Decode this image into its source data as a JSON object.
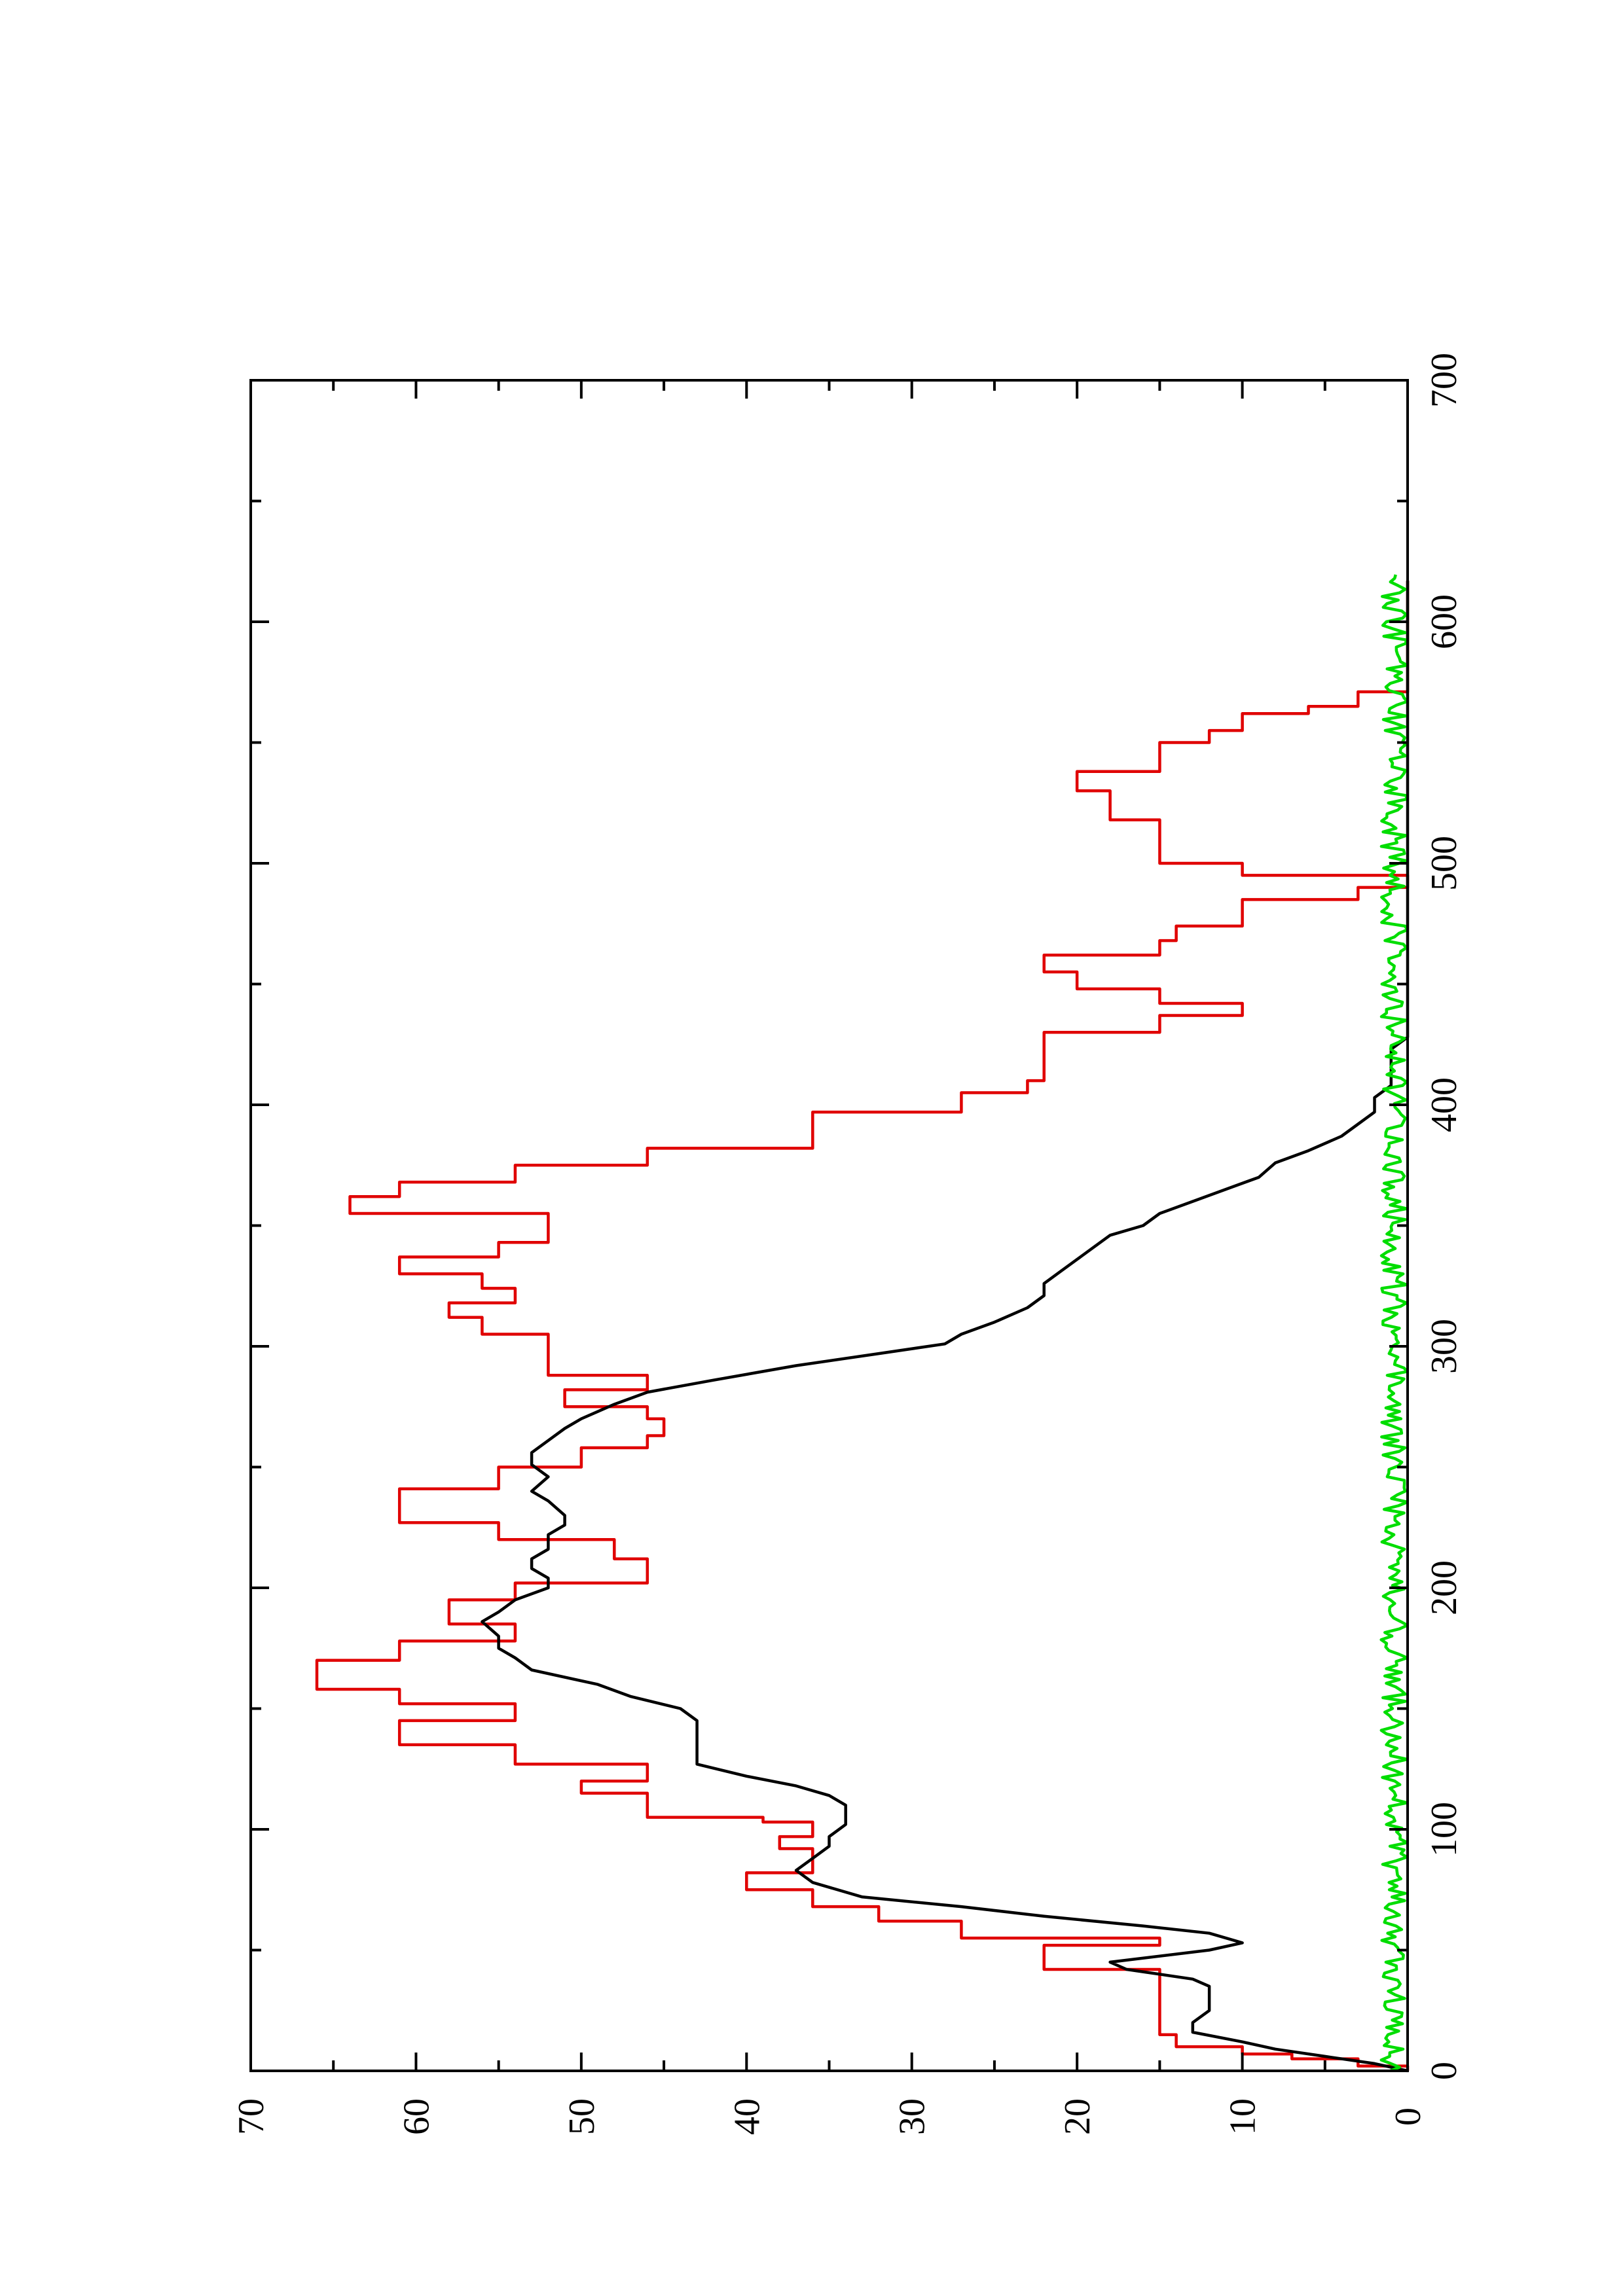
{
  "chart_data": {
    "type": "line",
    "orientation": "rotated-90-ccw",
    "xlim": [
      0,
      700
    ],
    "ylim": [
      0,
      70
    ],
    "x_major_ticks": [
      0,
      100,
      200,
      300,
      400,
      500,
      600,
      700
    ],
    "x_tick_labels": [
      "0",
      "100",
      "200",
      "300",
      "400",
      "500",
      "600",
      "700"
    ],
    "x_minor_ticks": [
      50,
      150,
      250,
      350,
      450,
      550,
      650
    ],
    "y_major_ticks": [
      0,
      10,
      20,
      30,
      40,
      50,
      60,
      70
    ],
    "y_tick_labels": [
      "0",
      "10",
      "20",
      "30",
      "40",
      "50",
      "60",
      "70"
    ],
    "y_minor_ticks": [
      5,
      15,
      25,
      35,
      45,
      55,
      65
    ],
    "grid": false,
    "series": [
      {
        "color": "#e00000",
        "step": true,
        "x": [
          0,
          2,
          5,
          7,
          10,
          15,
          20,
          25,
          30,
          37,
          42,
          52,
          55,
          62,
          68,
          75,
          82,
          88,
          92,
          97,
          103,
          105,
          110,
          115,
          120,
          127,
          135,
          145,
          152,
          158,
          163,
          170,
          178,
          185,
          195,
          202,
          212,
          220,
          227,
          233,
          241,
          250,
          258,
          263,
          270,
          275,
          282,
          288,
          294,
          300,
          305,
          312,
          318,
          324,
          330,
          337,
          343,
          350,
          355,
          362,
          368,
          375,
          382,
          393,
          397,
          405,
          410,
          415,
          423,
          430,
          437,
          442,
          448,
          455,
          462,
          468,
          474,
          480,
          485,
          490,
          495,
          500,
          507,
          512,
          518,
          525,
          530,
          535,
          538,
          545,
          550,
          555,
          562,
          565,
          571,
          580,
          588,
          595,
          602,
          608,
          612,
          617
        ],
        "y": [
          0,
          3,
          7,
          10,
          14,
          15,
          15,
          15,
          15,
          15,
          22,
          15,
          27,
          32,
          36,
          40,
          36,
          36,
          38,
          36,
          39,
          46,
          46,
          50,
          46,
          54,
          61,
          54,
          61,
          66,
          66,
          61,
          54,
          58,
          54,
          46,
          48,
          55,
          61,
          61,
          55,
          50,
          46,
          45,
          46,
          51,
          46,
          52,
          52,
          52,
          56,
          58,
          54,
          56,
          61,
          55,
          52,
          52,
          64,
          61,
          54,
          46,
          36,
          36,
          27,
          23,
          22,
          22,
          22,
          15,
          10,
          15,
          20,
          22,
          15,
          14,
          10,
          10,
          3,
          0,
          10,
          15,
          15,
          15,
          18,
          18,
          20,
          20,
          15,
          15,
          12,
          10,
          6,
          3,
          0,
          0,
          0,
          0,
          0,
          0,
          0,
          0
        ]
      },
      {
        "color": "#000000",
        "step": false,
        "x": [
          0,
          3,
          6,
          9,
          12,
          16,
          20,
          25,
          30,
          35,
          38,
          42,
          45,
          50,
          53,
          57,
          60,
          64,
          68,
          72,
          78,
          83,
          88,
          93,
          97,
          102,
          106,
          110,
          114,
          118,
          122,
          127,
          135,
          145,
          150,
          155,
          160,
          166,
          171,
          175,
          180,
          186,
          190,
          195,
          200,
          204,
          208,
          212,
          216,
          222,
          226,
          230,
          236,
          240,
          246,
          251,
          256,
          261,
          266,
          270,
          276,
          281,
          286,
          292,
          297,
          301,
          305,
          310,
          316,
          321,
          326,
          331,
          336,
          341,
          346,
          350,
          355,
          360,
          365,
          370,
          376,
          381,
          387,
          392,
          397,
          403,
          408,
          413,
          418,
          423,
          428,
          433,
          438,
          443,
          448,
          453,
          458,
          464,
          469,
          474,
          479,
          484,
          489,
          494,
          499,
          504,
          509,
          514,
          520,
          525,
          530,
          535,
          540,
          545,
          550,
          555,
          560,
          566,
          571,
          576,
          581,
          587,
          592,
          597,
          602,
          607,
          612,
          617
        ],
        "y": [
          0,
          2,
          5,
          8,
          10,
          13,
          13,
          12,
          12,
          12,
          13,
          17,
          18,
          12,
          10,
          12,
          16,
          22,
          27,
          33,
          36,
          37,
          36,
          35,
          35,
          34,
          34,
          34,
          35,
          37,
          40,
          43,
          43,
          43,
          44,
          47,
          49,
          53,
          54,
          55,
          55,
          56,
          55,
          54,
          52,
          52,
          53,
          53,
          52,
          52,
          51,
          51,
          52,
          53,
          52,
          53,
          53,
          52,
          51,
          50,
          48,
          46,
          42,
          37,
          32,
          28,
          27,
          25,
          23,
          22,
          22,
          21,
          20,
          19,
          18,
          16,
          15,
          13,
          11,
          9,
          8,
          6,
          4,
          3,
          2,
          2,
          1,
          1,
          1,
          1,
          0,
          0,
          0,
          0,
          0,
          0,
          0,
          0,
          0,
          0,
          0,
          0,
          0,
          0,
          0,
          0,
          0,
          0,
          0,
          0,
          0,
          0,
          0,
          0,
          0,
          0,
          0,
          0,
          0,
          0,
          0,
          0,
          0,
          0,
          0,
          0,
          0,
          0
        ]
      },
      {
        "color": "#00dd00",
        "step": false,
        "noisy_baseline": true,
        "x_range": [
          0,
          620
        ],
        "amplitude": [
          0,
          1.6
        ]
      }
    ]
  }
}
